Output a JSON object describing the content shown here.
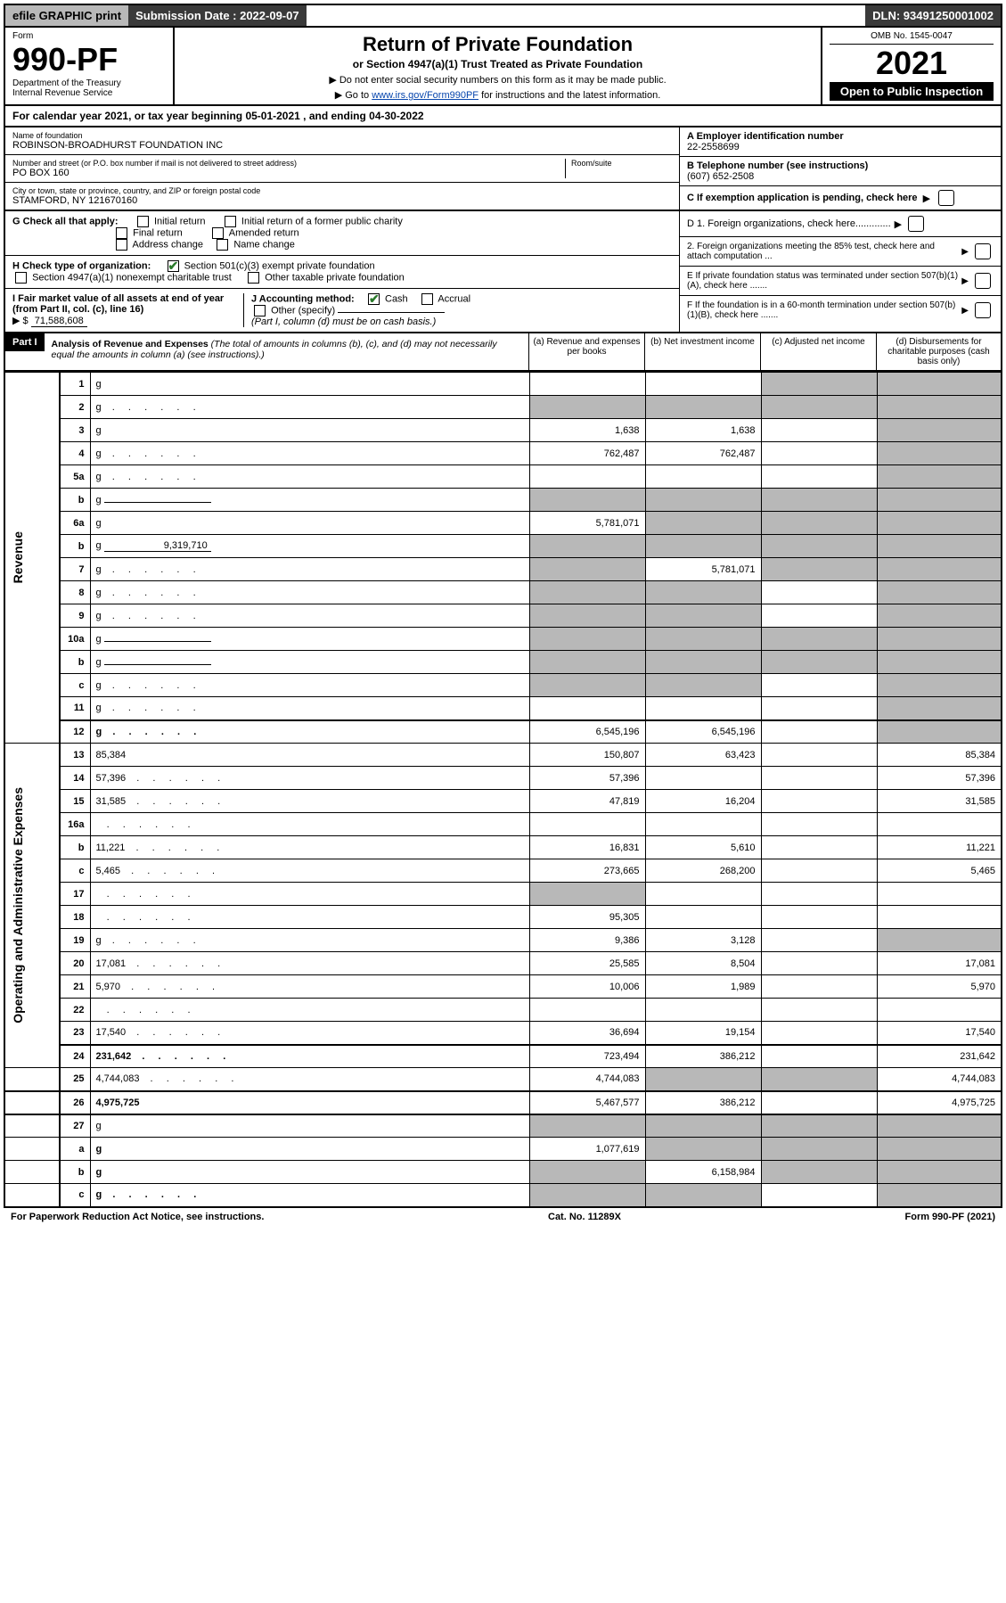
{
  "topbar": {
    "efile": "efile GRAPHIC print",
    "subdate_label": "Submission Date : 2022-09-07",
    "dln": "DLN: 93491250001002"
  },
  "header": {
    "form_word": "Form",
    "form_num": "990-PF",
    "dept": "Department of the Treasury",
    "irs": "Internal Revenue Service",
    "title": "Return of Private Foundation",
    "subtitle": "or Section 4947(a)(1) Trust Treated as Private Foundation",
    "inst1": "▶ Do not enter social security numbers on this form as it may be made public.",
    "inst2_pre": "▶ Go to ",
    "inst2_link": "www.irs.gov/Form990PF",
    "inst2_post": " for instructions and the latest information.",
    "omb": "OMB No. 1545-0047",
    "year": "2021",
    "open": "Open to Public Inspection"
  },
  "cal": "For calendar year 2021, or tax year beginning 05-01-2021                         , and ending 04-30-2022",
  "entity": {
    "name_label": "Name of foundation",
    "name": "ROBINSON-BROADHURST FOUNDATION INC",
    "addr_label": "Number and street (or P.O. box number if mail is not delivered to street address)",
    "room_label": "Room/suite",
    "addr": "PO BOX 160",
    "city_label": "City or town, state or province, country, and ZIP or foreign postal code",
    "city": "STAMFORD, NY  121670160",
    "a_label": "A Employer identification number",
    "a_val": "22-2558699",
    "b_label": "B Telephone number (see instructions)",
    "b_val": "(607) 652-2508",
    "c_label": "C If exemption application is pending, check here"
  },
  "checks": {
    "g_label": "G Check all that apply:",
    "g_initial": "Initial return",
    "g_initial_former": "Initial return of a former public charity",
    "g_final": "Final return",
    "g_amended": "Amended return",
    "g_addr": "Address change",
    "g_name": "Name change",
    "h_label": "H Check type of organization:",
    "h_501c3": "Section 501(c)(3) exempt private foundation",
    "h_4947": "Section 4947(a)(1) nonexempt charitable trust",
    "h_other": "Other taxable private foundation",
    "i_label": "I Fair market value of all assets at end of year (from Part II, col. (c), line 16)",
    "i_val": "71,588,608",
    "i_prefix": "▶ $",
    "j_label": "J Accounting method:",
    "j_cash": "Cash",
    "j_accrual": "Accrual",
    "j_other": "Other (specify)",
    "j_note": "(Part I, column (d) must be on cash basis.)",
    "d1": "D 1. Foreign organizations, check here.............",
    "d2": "2. Foreign organizations meeting the 85% test, check here and attach computation ...",
    "e": "E  If private foundation status was terminated under section 507(b)(1)(A), check here .......",
    "f": "F  If the foundation is in a 60-month termination under section 507(b)(1)(B), check here .......",
    "arrow": "▶"
  },
  "part1": {
    "label": "Part I",
    "title": "Analysis of Revenue and Expenses",
    "title_note": " (The total of amounts in columns (b), (c), and (d) may not necessarily equal the amounts in column (a) (see instructions).)",
    "col_a": "(a)   Revenue and expenses per books",
    "col_b": "(b)   Net investment income",
    "col_c": "(c)   Adjusted net income",
    "col_d": "(d)   Disbursements for charitable purposes (cash basis only)"
  },
  "sides": {
    "rev": "Revenue",
    "exp": "Operating and Administrative Expenses"
  },
  "rows": [
    {
      "n": "1",
      "d": "g",
      "a": "",
      "b": "",
      "c": "g"
    },
    {
      "n": "2",
      "d": "g",
      "a": "g",
      "b": "g",
      "c": "g",
      "chk": true,
      "dots": true
    },
    {
      "n": "3",
      "d": "g",
      "a": "1,638",
      "b": "1,638",
      "c": ""
    },
    {
      "n": "4",
      "d": "g",
      "a": "762,487",
      "b": "762,487",
      "c": "",
      "dots": true
    },
    {
      "n": "5a",
      "d": "g",
      "a": "",
      "b": "",
      "c": "",
      "dots": true
    },
    {
      "n": "b",
      "d": "g",
      "a": "g",
      "b": "g",
      "c": "g",
      "inline": true
    },
    {
      "n": "6a",
      "d": "g",
      "a": "5,781,071",
      "b": "g",
      "c": "g"
    },
    {
      "n": "b",
      "d": "g",
      "a": "g",
      "b": "g",
      "c": "g",
      "inline": true,
      "inline_val": "9,319,710"
    },
    {
      "n": "7",
      "d": "g",
      "a": "g",
      "b": "5,781,071",
      "c": "g",
      "dots": true
    },
    {
      "n": "8",
      "d": "g",
      "a": "g",
      "b": "g",
      "c": "",
      "dots": true
    },
    {
      "n": "9",
      "d": "g",
      "a": "g",
      "b": "g",
      "c": "",
      "dots": true
    },
    {
      "n": "10a",
      "d": "g",
      "a": "g",
      "b": "g",
      "c": "g",
      "inline": true
    },
    {
      "n": "b",
      "d": "g",
      "a": "g",
      "b": "g",
      "c": "g",
      "inline": true,
      "dots": true
    },
    {
      "n": "c",
      "d": "g",
      "a": "g",
      "b": "g",
      "c": "",
      "dots": true
    },
    {
      "n": "11",
      "d": "g",
      "a": "",
      "b": "",
      "c": "",
      "dots": true
    },
    {
      "n": "12",
      "d": "g",
      "a": "6,545,196",
      "b": "6,545,196",
      "c": "",
      "bold": true,
      "dots": true,
      "total": true
    },
    {
      "n": "13",
      "d": "85,384",
      "a": "150,807",
      "b": "63,423",
      "c": ""
    },
    {
      "n": "14",
      "d": "57,396",
      "a": "57,396",
      "b": "",
      "c": "",
      "dots": true
    },
    {
      "n": "15",
      "d": "31,585",
      "a": "47,819",
      "b": "16,204",
      "c": "",
      "dots": true
    },
    {
      "n": "16a",
      "d": "",
      "a": "",
      "b": "",
      "c": "",
      "dots": true
    },
    {
      "n": "b",
      "d": "11,221",
      "a": "16,831",
      "b": "5,610",
      "c": "",
      "dots": true
    },
    {
      "n": "c",
      "d": "5,465",
      "a": "273,665",
      "b": "268,200",
      "c": "",
      "dots": true
    },
    {
      "n": "17",
      "d": "",
      "a": "g",
      "b": "",
      "c": "",
      "dots": true
    },
    {
      "n": "18",
      "d": "",
      "a": "95,305",
      "b": "",
      "c": "",
      "dots": true
    },
    {
      "n": "19",
      "d": "g",
      "a": "9,386",
      "b": "3,128",
      "c": "",
      "dots": true
    },
    {
      "n": "20",
      "d": "17,081",
      "a": "25,585",
      "b": "8,504",
      "c": "",
      "dots": true
    },
    {
      "n": "21",
      "d": "5,970",
      "a": "10,006",
      "b": "1,989",
      "c": "",
      "dots": true
    },
    {
      "n": "22",
      "d": "",
      "a": "",
      "b": "",
      "c": "",
      "dots": true
    },
    {
      "n": "23",
      "d": "17,540",
      "a": "36,694",
      "b": "19,154",
      "c": "",
      "dots": true
    },
    {
      "n": "24",
      "d": "231,642",
      "a": "723,494",
      "b": "386,212",
      "c": "",
      "bold": true,
      "dots": true,
      "total": true
    },
    {
      "n": "25",
      "d": "4,744,083",
      "a": "4,744,083",
      "b": "g",
      "c": "g",
      "dots": true
    },
    {
      "n": "26",
      "d": "4,975,725",
      "a": "5,467,577",
      "b": "386,212",
      "c": "",
      "bold": true,
      "total": true
    },
    {
      "n": "27",
      "d": "g",
      "a": "g",
      "b": "g",
      "c": "g",
      "total": true
    },
    {
      "n": "a",
      "d": "g",
      "a": "1,077,619",
      "b": "g",
      "c": "g",
      "bold": true
    },
    {
      "n": "b",
      "d": "g",
      "a": "g",
      "b": "6,158,984",
      "c": "g",
      "bold": true
    },
    {
      "n": "c",
      "d": "g",
      "a": "g",
      "b": "g",
      "c": "",
      "bold": true,
      "dots": true
    }
  ],
  "footer": {
    "left": "For Paperwork Reduction Act Notice, see instructions.",
    "mid": "Cat. No. 11289X",
    "right": "Form 990-PF (2021)"
  },
  "colors": {
    "grey": "#b8b8b8",
    "dark": "#3a3a3a",
    "link": "#0645ad",
    "check": "#2a7a2a"
  }
}
